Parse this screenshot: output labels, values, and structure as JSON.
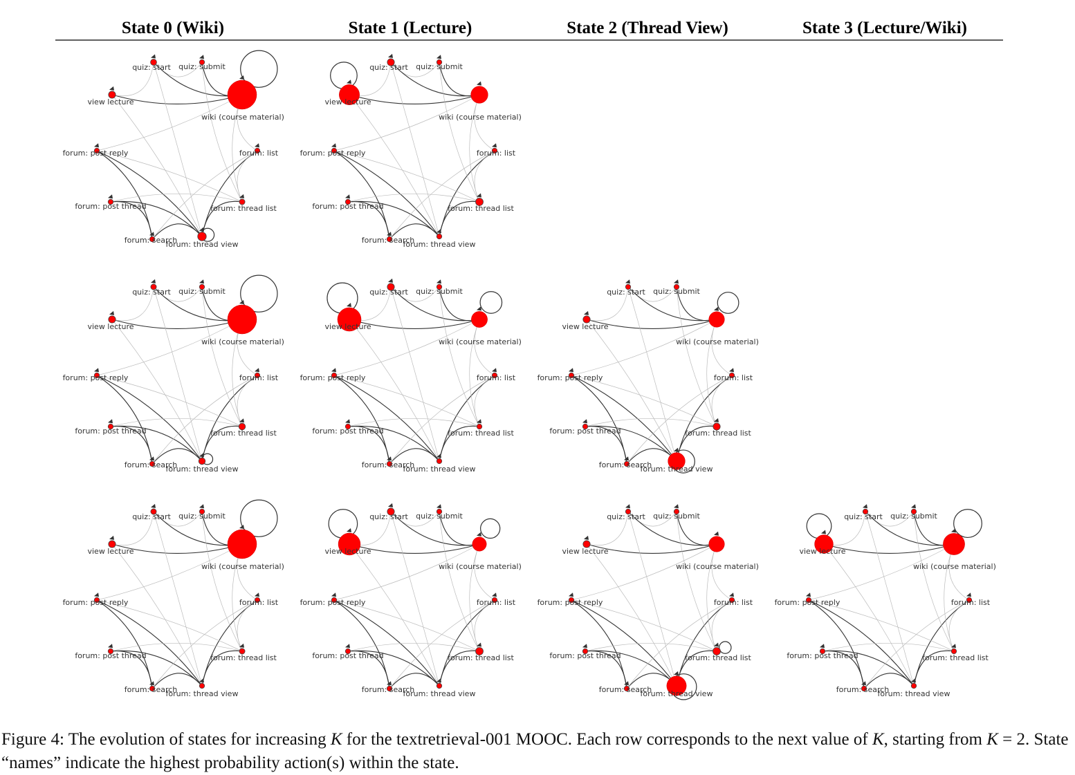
{
  "headers": [
    "State 0 (Wiki)",
    "State 1 (Lecture)",
    "State 2 (Thread View)",
    "State 3 (Lecture/Wiki)"
  ],
  "node_labels": [
    "quiz: start",
    "quiz: submit",
    "view lecture",
    "wiki (course material)",
    "forum: post reply",
    "forum: list",
    "forum: post thread",
    "forum: thread list",
    "forum: search",
    "forum: thread view"
  ],
  "graphs": [
    {
      "row": 0,
      "col": 0,
      "sizes": [
        0.08,
        0.04,
        0.12,
        1.0,
        0.04,
        0.04,
        0.04,
        0.06,
        0.04,
        0.18
      ],
      "self_loops": [
        3,
        9
      ]
    },
    {
      "row": 0,
      "col": 1,
      "sizes": [
        0.12,
        0.04,
        0.65,
        0.52,
        0.04,
        0.04,
        0.04,
        0.14,
        0.04,
        0.04
      ],
      "self_loops": [
        2
      ]
    },
    {
      "row": 1,
      "col": 0,
      "sizes": [
        0.06,
        0.04,
        0.12,
        1.0,
        0.04,
        0.04,
        0.04,
        0.1,
        0.04,
        0.1
      ],
      "self_loops": [
        3,
        9
      ]
    },
    {
      "row": 1,
      "col": 1,
      "sizes": [
        0.12,
        0.04,
        0.78,
        0.48,
        0.04,
        0.04,
        0.04,
        0.04,
        0.04,
        0.04
      ],
      "self_loops": [
        2,
        3
      ]
    },
    {
      "row": 1,
      "col": 2,
      "sizes": [
        0.04,
        0.04,
        0.12,
        0.46,
        0.04,
        0.04,
        0.04,
        0.12,
        0.04,
        0.52
      ],
      "self_loops": [
        3,
        9
      ]
    },
    {
      "row": 2,
      "col": 0,
      "sizes": [
        0.06,
        0.04,
        0.12,
        1.0,
        0.04,
        0.04,
        0.04,
        0.06,
        0.04,
        0.04
      ],
      "self_loops": [
        3
      ]
    },
    {
      "row": 2,
      "col": 1,
      "sizes": [
        0.12,
        0.04,
        0.72,
        0.4,
        0.04,
        0.04,
        0.04,
        0.14,
        0.04,
        0.04
      ],
      "self_loops": [
        2,
        3
      ]
    },
    {
      "row": 2,
      "col": 2,
      "sizes": [
        0.04,
        0.04,
        0.12,
        0.46,
        0.04,
        0.04,
        0.04,
        0.14,
        0.04,
        0.62
      ],
      "self_loops": [
        9,
        7
      ]
    },
    {
      "row": 2,
      "col": 3,
      "sizes": [
        0.04,
        0.04,
        0.58,
        0.7,
        0.04,
        0.04,
        0.04,
        0.04,
        0.04,
        0.04
      ],
      "self_loops": [
        2,
        3
      ]
    }
  ],
  "colors": {
    "node": "#ff0000",
    "edge": "#555555",
    "marker": "#333333"
  },
  "caption": {
    "lead": "Figure 4: The evolution of states for increasing ",
    "var1": "K",
    "mid": " for the textretrieval-001 MOOC. Each row corresponds to the next value of ",
    "var2": "K",
    "mid2": ", starting from ",
    "var3": "K",
    "eq": " = 2. State “names” indicate the highest probability action(s) within the state."
  }
}
